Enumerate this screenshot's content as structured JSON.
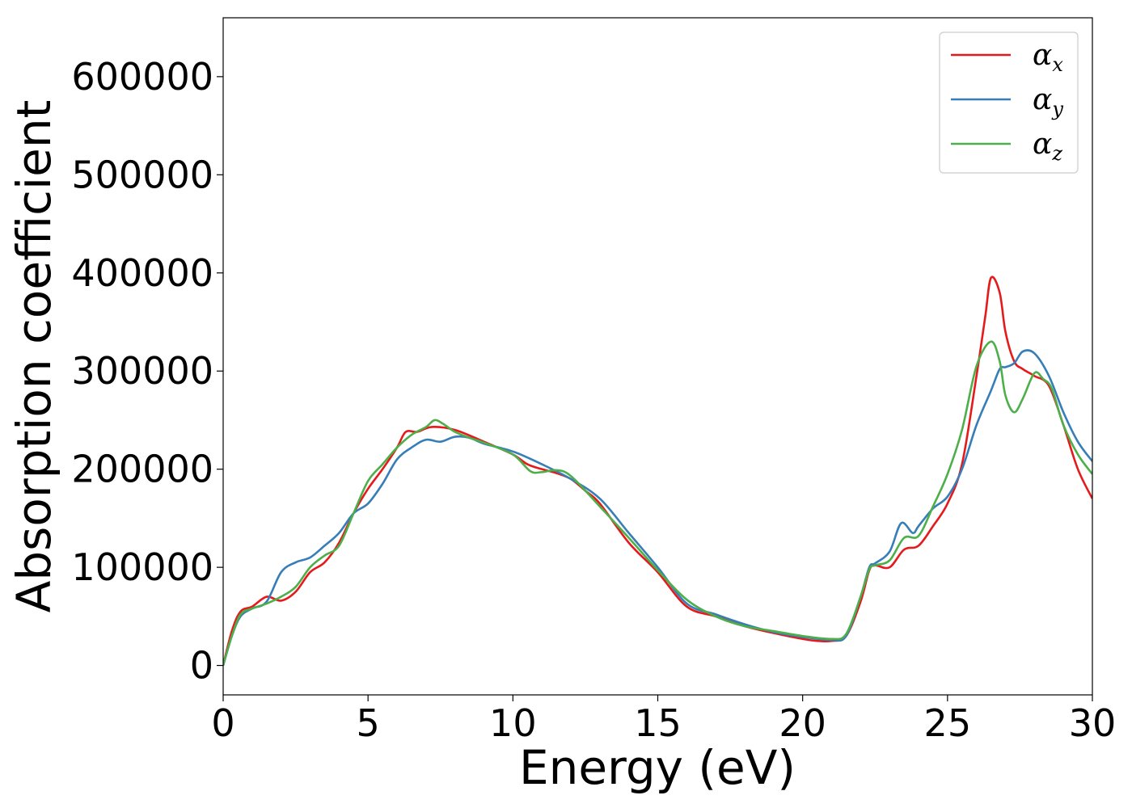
{
  "chart_data": {
    "type": "line",
    "title": "",
    "xlabel": "Energy (eV)",
    "ylabel": "Absorption coefficient",
    "xlim": [
      0,
      30
    ],
    "ylim": [
      -30000,
      660000
    ],
    "xticks": [
      0,
      5,
      10,
      15,
      20,
      25,
      30
    ],
    "xtick_labels": [
      "0",
      "5",
      "10",
      "15",
      "20",
      "25",
      "30"
    ],
    "yticks": [
      0,
      100000,
      200000,
      300000,
      400000,
      500000,
      600000
    ],
    "ytick_labels": [
      "0",
      "100000",
      "200000",
      "300000",
      "400000",
      "500000",
      "600000"
    ],
    "grid": false,
    "legend_position": "top-right",
    "series": [
      {
        "name": "αx",
        "symbol": "α",
        "subscript": "x",
        "color": "#e41a1c",
        "x": [
          0,
          0.3,
          0.6,
          1.0,
          1.5,
          2.0,
          2.5,
          3.0,
          3.5,
          4.0,
          4.5,
          5.0,
          5.5,
          6.0,
          6.3,
          6.7,
          7.2,
          8.0,
          9.0,
          10.0,
          10.5,
          11.0,
          11.5,
          12.0,
          12.5,
          13.0,
          14.0,
          15.0,
          16.0,
          17.0,
          18.0,
          19.0,
          20.0,
          20.5,
          21.0,
          21.5,
          22.0,
          22.3,
          22.5,
          23.0,
          23.5,
          24.0,
          24.5,
          25.0,
          25.5,
          26.0,
          26.3,
          26.5,
          26.8,
          27.0,
          27.3,
          27.6,
          28.0,
          28.5,
          29.0,
          29.5,
          30.0
        ],
        "values": [
          0,
          35000,
          55000,
          60000,
          70000,
          66000,
          75000,
          95000,
          105000,
          125000,
          155000,
          180000,
          200000,
          222000,
          238000,
          238000,
          243000,
          240000,
          228000,
          215000,
          205000,
          200000,
          196000,
          190000,
          178000,
          165000,
          125000,
          95000,
          60000,
          50000,
          40000,
          33000,
          27000,
          25000,
          25000,
          30000,
          65000,
          97000,
          102000,
          100000,
          118000,
          122000,
          142000,
          165000,
          205000,
          295000,
          355000,
          395000,
          380000,
          340000,
          310000,
          302000,
          295000,
          285000,
          245000,
          200000,
          170000
        ]
      },
      {
        "name": "αy",
        "symbol": "α",
        "subscript": "y",
        "color": "#377eb8",
        "x": [
          0,
          0.3,
          0.6,
          1.0,
          1.5,
          2.0,
          2.5,
          3.0,
          3.5,
          4.0,
          4.5,
          5.0,
          5.5,
          6.0,
          6.5,
          7.0,
          7.5,
          8.0,
          8.5,
          9.0,
          10.0,
          11.0,
          12.0,
          13.0,
          14.0,
          15.0,
          16.0,
          17.0,
          18.0,
          19.0,
          20.0,
          21.0,
          21.5,
          22.0,
          22.3,
          22.5,
          23.0,
          23.4,
          23.8,
          24.0,
          24.5,
          25.0,
          25.5,
          26.0,
          26.5,
          26.8,
          27.0,
          27.3,
          27.6,
          28.0,
          28.5,
          29.0,
          29.5,
          30.0
        ],
        "values": [
          0,
          30000,
          50000,
          58000,
          65000,
          95000,
          105000,
          110000,
          122000,
          135000,
          155000,
          165000,
          185000,
          210000,
          222000,
          230000,
          228000,
          233000,
          232000,
          226000,
          218000,
          205000,
          190000,
          170000,
          135000,
          100000,
          63000,
          52000,
          42000,
          34000,
          29000,
          26000,
          30000,
          70000,
          100000,
          104000,
          116000,
          145000,
          135000,
          142000,
          160000,
          172000,
          200000,
          245000,
          280000,
          302000,
          304000,
          308000,
          320000,
          318000,
          295000,
          258000,
          228000,
          208000
        ]
      },
      {
        "name": "αz",
        "symbol": "α",
        "subscript": "z",
        "color": "#4daf4a",
        "x": [
          0,
          0.3,
          0.6,
          1.0,
          1.5,
          2.0,
          2.5,
          3.0,
          3.5,
          4.0,
          4.5,
          5.0,
          5.5,
          6.0,
          6.5,
          7.0,
          7.3,
          7.6,
          8.0,
          8.5,
          9.0,
          10.0,
          10.6,
          11.0,
          11.5,
          12.0,
          13.0,
          14.0,
          15.0,
          16.0,
          17.0,
          18.0,
          19.0,
          20.0,
          21.0,
          21.5,
          22.0,
          22.3,
          22.5,
          23.0,
          23.5,
          24.0,
          24.5,
          25.0,
          25.5,
          26.0,
          26.5,
          26.8,
          27.0,
          27.3,
          27.6,
          28.0,
          28.3,
          28.6,
          29.0,
          29.5,
          30.0
        ],
        "values": [
          0,
          30000,
          52000,
          58000,
          63000,
          70000,
          80000,
          100000,
          112000,
          122000,
          155000,
          188000,
          205000,
          222000,
          235000,
          243000,
          250000,
          246000,
          238000,
          232000,
          227000,
          215000,
          198000,
          197000,
          199000,
          193000,
          162000,
          130000,
          97000,
          67000,
          50000,
          40000,
          35000,
          30000,
          27000,
          32000,
          70000,
          98000,
          102000,
          107000,
          130000,
          132000,
          162000,
          195000,
          240000,
          305000,
          330000,
          310000,
          275000,
          258000,
          272000,
          298000,
          292000,
          282000,
          245000,
          215000,
          195000
        ]
      }
    ]
  }
}
